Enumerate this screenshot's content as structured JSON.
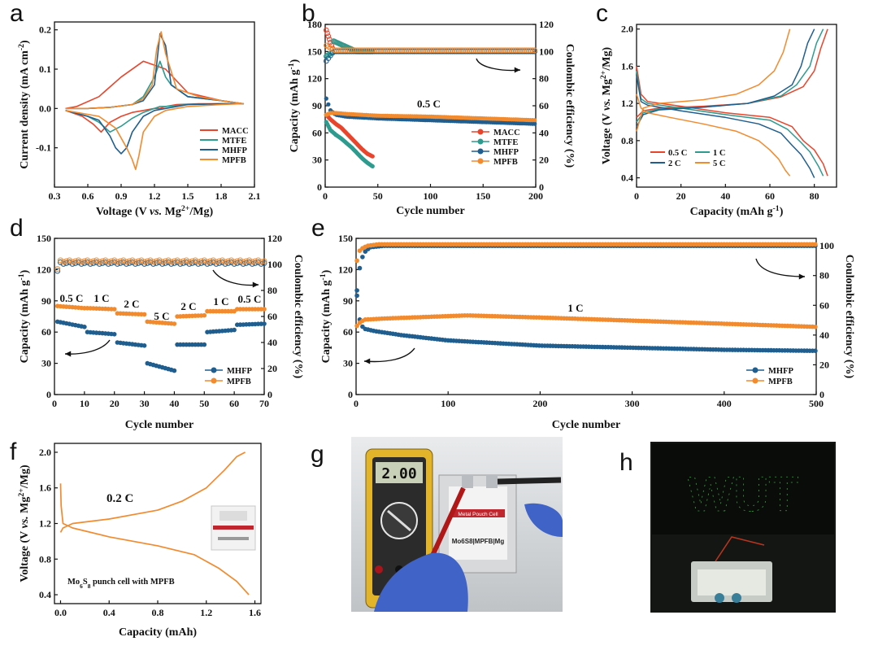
{
  "panel_letters": [
    "a",
    "b",
    "c",
    "d",
    "e",
    "f",
    "g",
    "h"
  ],
  "colors": {
    "MACC": "#e8452c",
    "MTFE": "#2e9b8f",
    "MHFP": "#1f5e8e",
    "MPFB": "#f28a2e"
  },
  "chart_data": [
    {
      "id": "a",
      "type": "line",
      "xlabel": "Voltage (V vs. Mg2+/Mg)",
      "ylabel": "Current density (mA cm-2)",
      "xlim": [
        0.3,
        2.1
      ],
      "ylim": [
        -0.2,
        0.22
      ],
      "xticks": [
        "0.3",
        "0.6",
        "0.9",
        "1.2",
        "1.5",
        "1.8",
        "2.1"
      ],
      "yticks": [
        "-0.1",
        "0.0",
        "0.1",
        "0.2"
      ],
      "legend": "lower-right",
      "series": [
        {
          "name": "MACC",
          "color": "#e8452c",
          "x": [
            0.4,
            0.55,
            0.65,
            0.72,
            0.8,
            0.9,
            1.0,
            1.1,
            1.2,
            1.25,
            1.3,
            1.4,
            1.6,
            1.8,
            2.0,
            1.8,
            1.5,
            1.3,
            1.1,
            0.9,
            0.7,
            0.5,
            0.4
          ],
          "y": [
            -0.005,
            -0.02,
            -0.04,
            -0.06,
            -0.035,
            -0.02,
            -0.01,
            -0.005,
            0.0,
            0.0,
            0.005,
            0.01,
            0.012,
            0.012,
            0.012,
            0.02,
            0.04,
            0.1,
            0.12,
            0.08,
            0.03,
            0.005,
            0.0
          ]
        },
        {
          "name": "MTFE",
          "color": "#2e9b8f",
          "x": [
            0.4,
            0.6,
            0.7,
            0.8,
            0.9,
            1.0,
            1.1,
            1.2,
            1.25,
            1.3,
            1.5,
            1.8,
            2.0,
            1.8,
            1.5,
            1.35,
            1.3,
            1.25,
            1.2,
            1.1,
            1.0,
            0.8,
            0.6,
            0.4
          ],
          "y": [
            -0.005,
            -0.02,
            -0.035,
            -0.06,
            -0.045,
            -0.025,
            -0.01,
            0.0,
            0.005,
            0.005,
            0.01,
            0.012,
            0.012,
            0.02,
            0.03,
            0.06,
            0.08,
            0.12,
            0.08,
            0.03,
            0.01,
            0.003,
            0.0,
            0.0
          ]
        },
        {
          "name": "MHFP",
          "color": "#1f5e8e",
          "x": [
            0.4,
            0.6,
            0.7,
            0.8,
            0.85,
            0.9,
            0.95,
            1.0,
            1.1,
            1.2,
            1.3,
            1.5,
            1.8,
            2.0,
            1.8,
            1.5,
            1.35,
            1.3,
            1.25,
            1.2,
            1.1,
            1.0,
            0.8,
            0.6,
            0.4
          ],
          "y": [
            -0.005,
            -0.02,
            -0.03,
            -0.07,
            -0.1,
            -0.115,
            -0.1,
            -0.06,
            -0.02,
            -0.005,
            0.0,
            0.01,
            0.012,
            0.012,
            0.02,
            0.03,
            0.06,
            0.16,
            0.19,
            0.06,
            0.02,
            0.01,
            0.003,
            0.0,
            0.0
          ]
        },
        {
          "name": "MPFB",
          "color": "#f28a2e",
          "x": [
            0.4,
            0.7,
            0.85,
            0.95,
            1.0,
            1.03,
            1.06,
            1.1,
            1.2,
            1.3,
            1.5,
            1.8,
            2.0,
            1.8,
            1.6,
            1.4,
            1.3,
            1.26,
            1.22,
            1.18,
            1.1,
            1.0,
            0.8,
            0.6,
            0.4
          ],
          "y": [
            -0.005,
            -0.02,
            -0.05,
            -0.1,
            -0.13,
            -0.155,
            -0.12,
            -0.06,
            -0.02,
            -0.005,
            0.005,
            0.01,
            0.012,
            0.02,
            0.03,
            0.05,
            0.14,
            0.195,
            0.15,
            0.06,
            0.025,
            0.01,
            0.003,
            0.0,
            0.0
          ]
        }
      ]
    },
    {
      "id": "b",
      "type": "scatter",
      "xlabel": "Cycle number",
      "ylabel": "Capacity (mAh g-1)",
      "ylabel_right": "Coulombic efficiency (%)",
      "xlim": [
        0,
        200
      ],
      "ylim": [
        0,
        180
      ],
      "ylim_right": [
        0,
        120
      ],
      "xticks": [
        "0",
        "50",
        "100",
        "150",
        "200"
      ],
      "yticks": [
        "0",
        "30",
        "60",
        "90",
        "120",
        "150",
        "180"
      ],
      "yticks_right": [
        "0",
        "20",
        "40",
        "60",
        "80",
        "100",
        "120"
      ],
      "annotation": "0.5 C",
      "legend": "lower-right",
      "series": [
        {
          "name": "MACC",
          "color": "#e8452c",
          "capacity": {
            "x": [
              1,
              5,
              10,
              15,
              20,
              25,
              30,
              35,
              40,
              45
            ],
            "y": [
              80,
              75,
              70,
              66,
              60,
              54,
              48,
              42,
              37,
              34
            ]
          },
          "ce_end": 45,
          "ce_start": 118,
          "ce_plateau": 100
        },
        {
          "name": "MTFE",
          "color": "#2e9b8f",
          "capacity": {
            "x": [
              1,
              5,
              10,
              15,
              20,
              25,
              30,
              35,
              40,
              45
            ],
            "y": [
              72,
              63,
              58,
              54,
              49,
              44,
              38,
              32,
              27,
              23
            ]
          },
          "ce_end": 45,
          "ce_start": 96,
          "ce_plateau": 100
        },
        {
          "name": "MHFP",
          "color": "#1f5e8e",
          "capacity": {
            "x": [
              1,
              5,
              10,
              20,
              50,
              100,
              150,
              200
            ],
            "y": [
              98,
              85,
              80,
              78,
              76,
              74,
              72,
              70
            ]
          },
          "ce_end": 200,
          "ce_start": 92,
          "ce_plateau": 100
        },
        {
          "name": "MPFB",
          "color": "#f28a2e",
          "capacity": {
            "x": [
              1,
              5,
              10,
              20,
              50,
              100,
              150,
              200
            ],
            "y": [
              80,
              82,
              82,
              81,
              79,
              78,
              76,
              74
            ]
          },
          "ce_end": 200,
          "ce_start": 105,
          "ce_plateau": 101
        }
      ]
    },
    {
      "id": "c",
      "type": "line",
      "xlabel": "Capacity (mAh g-1)",
      "ylabel": "Voltage (V vs. Mg2+/Mg)",
      "xlim": [
        0,
        90
      ],
      "ylim": [
        0.3,
        2.05
      ],
      "xticks": [
        "0",
        "20",
        "40",
        "60",
        "80"
      ],
      "yticks": [
        "0.4",
        "0.8",
        "1.2",
        "1.6",
        "2.0"
      ],
      "legend": "lower-right",
      "series": [
        {
          "name": "0.5 C",
          "color": "#e8452c",
          "charge": {
            "x": [
              0,
              3,
              10,
              30,
              50,
              65,
              75,
              80,
              83,
              86
            ],
            "y": [
              1.05,
              1.12,
              1.15,
              1.17,
              1.2,
              1.27,
              1.38,
              1.55,
              1.8,
              2.0
            ]
          },
          "discharge": {
            "x": [
              0,
              2,
              5,
              20,
              40,
              60,
              70,
              75,
              80,
              84,
              86
            ],
            "y": [
              1.6,
              1.3,
              1.22,
              1.17,
              1.1,
              1.05,
              0.95,
              0.8,
              0.7,
              0.55,
              0.42
            ]
          }
        },
        {
          "name": "1 C",
          "color": "#2e9b8f",
          "charge": {
            "x": [
              0,
              3,
              10,
              30,
              50,
              65,
              72,
              78,
              81,
              84
            ],
            "y": [
              1.0,
              1.1,
              1.14,
              1.16,
              1.2,
              1.28,
              1.4,
              1.6,
              1.85,
              2.0
            ]
          },
          "discharge": {
            "x": [
              0,
              2,
              5,
              20,
              40,
              60,
              68,
              74,
              78,
              82,
              84
            ],
            "y": [
              1.55,
              1.25,
              1.2,
              1.15,
              1.08,
              1.02,
              0.92,
              0.78,
              0.68,
              0.52,
              0.42
            ]
          }
        },
        {
          "name": "2 C",
          "color": "#1f5e8e",
          "charge": {
            "x": [
              0,
              3,
              10,
              30,
              50,
              62,
              70,
              74,
              77,
              80
            ],
            "y": [
              0.95,
              1.08,
              1.13,
              1.16,
              1.2,
              1.28,
              1.4,
              1.6,
              1.85,
              2.0
            ]
          },
          "discharge": {
            "x": [
              0,
              2,
              5,
              20,
              40,
              55,
              65,
              70,
              74,
              78,
              80
            ],
            "y": [
              1.5,
              1.22,
              1.18,
              1.12,
              1.05,
              0.98,
              0.88,
              0.75,
              0.65,
              0.5,
              0.4
            ]
          }
        },
        {
          "name": "5 C",
          "color": "#f28a2e",
          "charge": {
            "x": [
              0,
              3,
              10,
              30,
              45,
              55,
              62,
              66,
              69
            ],
            "y": [
              0.9,
              1.15,
              1.2,
              1.24,
              1.3,
              1.4,
              1.55,
              1.75,
              2.0
            ]
          },
          "discharge": {
            "x": [
              0,
              2,
              5,
              15,
              30,
              45,
              55,
              60,
              64,
              67,
              69
            ],
            "y": [
              1.3,
              1.15,
              1.1,
              1.05,
              0.98,
              0.9,
              0.8,
              0.7,
              0.6,
              0.48,
              0.42
            ]
          }
        }
      ]
    },
    {
      "id": "d",
      "type": "scatter",
      "xlabel": "Cycle number",
      "ylabel": "Capacity (mAh g-1)",
      "ylabel_right": "Coulombic efficiency (%)",
      "xlim": [
        0,
        70
      ],
      "ylim": [
        0,
        150
      ],
      "ylim_right": [
        0,
        120
      ],
      "xticks": [
        "0",
        "10",
        "20",
        "30",
        "40",
        "50",
        "60",
        "70"
      ],
      "yticks": [
        "0",
        "30",
        "60",
        "90",
        "120",
        "150"
      ],
      "yticks_right": [
        "0",
        "20",
        "40",
        "60",
        "80",
        "100",
        "120"
      ],
      "rate_labels": [
        "0.5 C",
        "1 C",
        "2 C",
        "5 C",
        "2 C",
        "1 C",
        "0.5 C"
      ],
      "legend": "lower-right",
      "series": [
        {
          "name": "MHFP",
          "color": "#1f5e8e",
          "segments": [
            [
              70,
              65
            ],
            [
              60,
              58
            ],
            [
              50,
              47
            ],
            [
              30,
              23
            ],
            [
              48,
              48
            ],
            [
              60,
              62
            ],
            [
              67,
              68
            ]
          ]
        },
        {
          "name": "MPFB",
          "color": "#f28a2e",
          "segments": [
            [
              85,
              83
            ],
            [
              83,
              82
            ],
            [
              78,
              77
            ],
            [
              70,
              68
            ],
            [
              75,
              76
            ],
            [
              80,
              80
            ],
            [
              82,
              82
            ]
          ]
        }
      ]
    },
    {
      "id": "e",
      "type": "scatter",
      "xlabel": "Cycle number",
      "ylabel": "Capacity (mAh g-1)",
      "ylabel_right": "Coulombic efficiency (%)",
      "xlim": [
        0,
        500
      ],
      "ylim": [
        0,
        150
      ],
      "ylim_right": [
        0,
        105
      ],
      "xticks": [
        "0",
        "100",
        "200",
        "300",
        "400",
        "500"
      ],
      "yticks": [
        "0",
        "30",
        "60",
        "90",
        "120",
        "150"
      ],
      "yticks_right": [
        "0",
        "20",
        "40",
        "60",
        "80",
        "100"
      ],
      "annotation": "1 C",
      "legend": "lower-right",
      "series": [
        {
          "name": "MHFP",
          "color": "#1f5e8e",
          "capacity": {
            "x": [
              1,
              3,
              6,
              10,
              20,
              50,
              100,
              200,
              300,
              400,
              500
            ],
            "y": [
              95,
              75,
              66,
              63,
              61,
              57,
              52,
              47,
              45,
              43,
              42
            ]
          },
          "ce": {
            "x": [
              1,
              4,
              8,
              15,
              30,
              500
            ],
            "y": [
              70,
              85,
              95,
              99,
              100,
              100
            ]
          }
        },
        {
          "name": "MPFB",
          "color": "#f28a2e",
          "capacity": {
            "x": [
              1,
              5,
              10,
              30,
              60,
              120,
              200,
              300,
              400,
              500
            ],
            "y": [
              66,
              70,
              72,
              73,
              74,
              76,
              74,
              71,
              68,
              65
            ]
          },
          "ce": {
            "x": [
              1,
              3,
              6,
              12,
              25,
              500
            ],
            "y": [
              90,
              96,
              98,
              100,
              101,
              101
            ]
          }
        }
      ]
    },
    {
      "id": "f",
      "type": "line",
      "xlabel": "Capacity (mAh)",
      "ylabel": "Voltage (V vs. Mg2+/Mg)",
      "xlim": [
        -0.05,
        1.65
      ],
      "ylim": [
        0.3,
        2.1
      ],
      "xticks": [
        "0.0",
        "0.4",
        "0.8",
        "1.2",
        "1.6"
      ],
      "yticks": [
        "0.4",
        "0.8",
        "1.2",
        "1.6",
        "2.0"
      ],
      "annotation": "0.2 C",
      "caption": "Mo6S8 punch cell with MPFB",
      "series": [
        {
          "name": "",
          "color": "#f28a2e",
          "charge": {
            "x": [
              0,
              0.02,
              0.1,
              0.4,
              0.8,
              1.0,
              1.2,
              1.35,
              1.45,
              1.52
            ],
            "y": [
              1.1,
              1.15,
              1.2,
              1.25,
              1.35,
              1.45,
              1.6,
              1.8,
              1.95,
              2.0
            ]
          },
          "discharge": {
            "x": [
              0,
              0.005,
              0.02,
              0.1,
              0.4,
              0.8,
              1.1,
              1.3,
              1.45,
              1.55
            ],
            "y": [
              1.65,
              1.4,
              1.2,
              1.15,
              1.05,
              0.95,
              0.85,
              0.7,
              0.55,
              0.4
            ]
          }
        }
      ]
    }
  ],
  "photos": {
    "g": {
      "multimeter_reading": "2.00",
      "pouch_label": "Mo6S8|MPFB|Mg",
      "pouch_tag": "Metal Pouch Cell"
    },
    "h": {
      "led_text": "WUT"
    }
  }
}
